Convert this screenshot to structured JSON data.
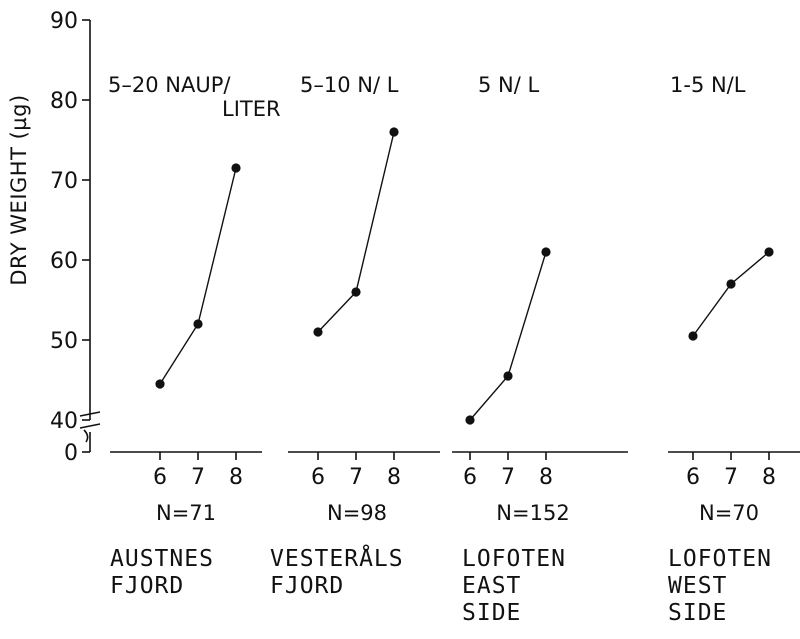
{
  "chart_data": {
    "type": "line",
    "ylabel": "DRY WEIGHT (µg)",
    "y_ticks": [
      "90",
      "80",
      "70",
      "60",
      "50",
      "40",
      "0"
    ],
    "ylim": [
      40,
      90
    ],
    "axis_break": true,
    "x_ticks": [
      "6",
      "7",
      "8"
    ],
    "panels": [
      {
        "density_label": [
          "5–20 NAUP/",
          "LITER"
        ],
        "n_label": "N=71",
        "site_label": [
          "AUSTNES",
          "FJORD"
        ],
        "x": [
          6,
          7,
          8
        ],
        "values": [
          44.5,
          52,
          71.5
        ]
      },
      {
        "density_label": [
          "5–10 N/ L"
        ],
        "n_label": "N=98",
        "site_label": [
          "VESTERÅLS",
          "FJORD"
        ],
        "x": [
          6,
          7,
          8
        ],
        "values": [
          51,
          56,
          76
        ]
      },
      {
        "density_label": [
          "5 N/ L"
        ],
        "n_label": "N=152",
        "site_label": [
          "LOFOTEN",
          "EAST",
          "SIDE"
        ],
        "x": [
          6,
          7,
          8
        ],
        "values": [
          40,
          45.5,
          61
        ]
      },
      {
        "density_label": [
          "1-5 N/L"
        ],
        "n_label": "N=70",
        "site_label": [
          "LOFOTEN",
          "WEST",
          "SIDE"
        ],
        "x": [
          6,
          7,
          8
        ],
        "values": [
          50.5,
          57,
          61
        ]
      }
    ]
  }
}
